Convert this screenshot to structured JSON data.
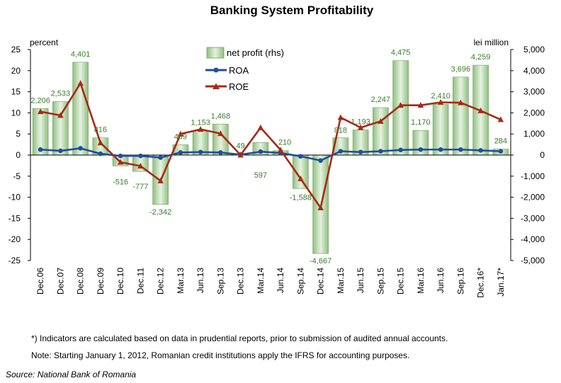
{
  "chart_data": {
    "type": "bar+line",
    "title": "Banking System Profitability",
    "left_axis": {
      "label": "percent",
      "min": -25,
      "max": 25,
      "step": 5
    },
    "right_axis": {
      "label": "lei million",
      "min": -5000,
      "max": 5000,
      "step": 1000
    },
    "categories": [
      "Dec.06",
      "Dec.07",
      "Dec.08",
      "Dec.09",
      "Dec.10",
      "Dec.11",
      "Dec.12",
      "Mar.13",
      "Jun.13",
      "Sep.13",
      "Dec.13",
      "Mar.14",
      "Jun.14",
      "Sep.14",
      "Dec.14",
      "Mar.15",
      "Jun.15",
      "Sep.15",
      "Dec.15",
      "Mar.16",
      "Jun.16",
      "Sep.16",
      "Dec.16*",
      "Jan.17*"
    ],
    "series": [
      {
        "name": "net profit (rhs)",
        "type": "bar",
        "axis": "right",
        "values": [
          2206,
          2533,
          4401,
          816,
          -516,
          -777,
          -2342,
          489,
          1153,
          1468,
          49,
          597,
          210,
          -1588,
          -4667,
          818,
          1193,
          2247,
          4475,
          1170,
          2410,
          3696,
          4259,
          284
        ],
        "labels": [
          "2,206",
          "2,533",
          "4,401",
          "816",
          "-516",
          "-777",
          "-2,342",
          "489",
          "1,153",
          "1,468",
          "49",
          "597",
          "210",
          "-1,588",
          "-4,667",
          "818",
          "1,193",
          "2,247",
          "4,475",
          "1,170",
          "2,410",
          "3,696",
          "4,259",
          "284"
        ]
      },
      {
        "name": "ROA",
        "type": "line",
        "axis": "left",
        "values": [
          1.3,
          1.0,
          1.6,
          0.3,
          -0.2,
          -0.2,
          -0.6,
          0.6,
          0.7,
          0.6,
          0.1,
          0.8,
          0.5,
          -0.3,
          -1.3,
          0.9,
          0.7,
          0.9,
          1.2,
          1.3,
          1.3,
          1.3,
          1.1,
          0.9
        ]
      },
      {
        "name": "ROE",
        "type": "line",
        "axis": "left",
        "values": [
          10.3,
          9.4,
          17.0,
          2.9,
          -1.7,
          -2.6,
          -6.1,
          5.0,
          6.1,
          5.1,
          0.0,
          6.5,
          1.2,
          -5.6,
          -12.5,
          8.9,
          6.5,
          8.0,
          11.8,
          11.8,
          12.5,
          12.4,
          10.5,
          8.4
        ]
      }
    ],
    "legend": "top-center",
    "grid": false
  },
  "notes": {
    "footnote": "*) Indicators are calculated based on data in prudential reports, prior to submission of audited annual accounts.",
    "note": "Note: Starting January 1, 2012, Romanian credit institutions apply the IFRS for accounting purposes.",
    "source": "Source: National Bank of Romania"
  },
  "colors": {
    "bar_fill_edge": "#8fbf7f",
    "bar_fill_mid": "#e6f2e1",
    "bar_stroke": "#6fa35f",
    "roa": "#1f4e9c",
    "roe": "#a62a13",
    "data_label": "#3a7d2c"
  }
}
